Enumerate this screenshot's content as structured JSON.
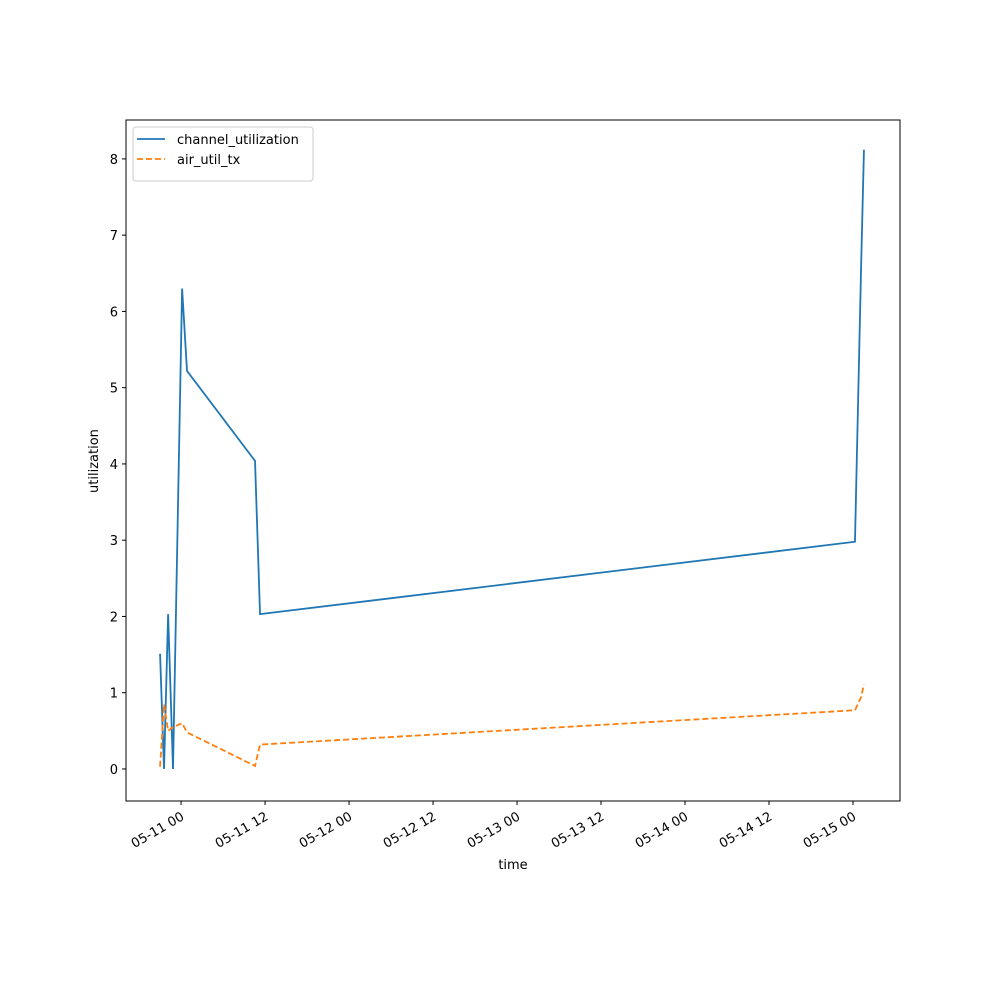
{
  "chart_data": {
    "type": "line",
    "xlabel": "time",
    "ylabel": "utilization",
    "x": [
      "05-10 21:00",
      "05-10 21:34",
      "05-10 22:09",
      "05-10 22:51",
      "05-11 00:09",
      "05-11 00:51",
      "05-11 10:34",
      "05-11 11:17",
      "05-15 00:17",
      "05-15 01:09",
      "05-15 01:34"
    ],
    "series": [
      {
        "name": "channel_utilization",
        "color": "#1f77b4",
        "dash": "solid",
        "values": [
          1.51,
          0,
          2.03,
          0,
          6.3,
          5.22,
          4.04,
          2.03,
          2.98,
          6.55,
          8.12
        ]
      },
      {
        "name": "air_util_tx",
        "color": "#ff7f0e",
        "dash": "dashed",
        "values": [
          0.03,
          0.85,
          0.5,
          0.55,
          0.6,
          0.48,
          0.04,
          0.32,
          0.77,
          0.94,
          1.11
        ]
      }
    ],
    "xlim": [
      "05-10 16:08",
      "05-15 06:43"
    ],
    "xticks": [
      {
        "value": "05-11 00:00",
        "label": "05-11 00"
      },
      {
        "value": "05-11 12:00",
        "label": "05-11 12"
      },
      {
        "value": "05-12 00:00",
        "label": "05-12 00"
      },
      {
        "value": "05-12 12:00",
        "label": "05-12 12"
      },
      {
        "value": "05-13 00:00",
        "label": "05-13 00"
      },
      {
        "value": "05-13 12:00",
        "label": "05-13 12"
      },
      {
        "value": "05-14 00:00",
        "label": "05-14 00"
      },
      {
        "value": "05-14 12:00",
        "label": "05-14 12"
      },
      {
        "value": "05-15 00:00",
        "label": "05-15 00"
      }
    ],
    "ylim": [
      -0.42,
      8.51
    ],
    "yticks": [
      0,
      1,
      2,
      3,
      4,
      5,
      6,
      7,
      8
    ],
    "legend": "upper left",
    "grid": false
  }
}
